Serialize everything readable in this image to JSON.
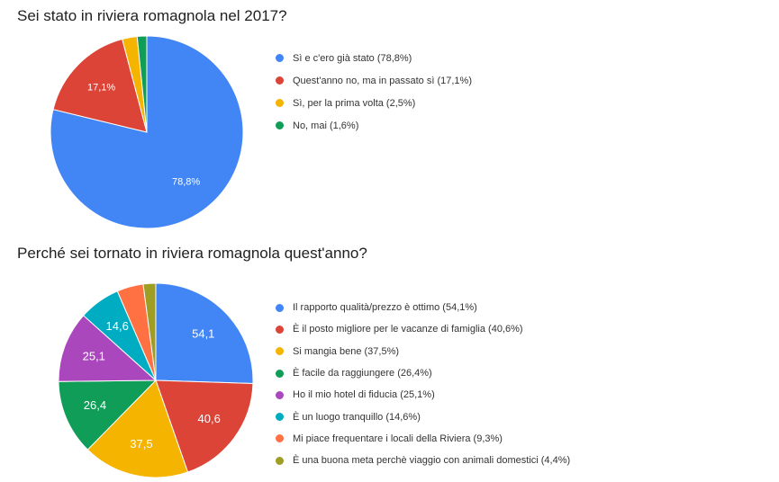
{
  "chart_data": [
    {
      "type": "pie",
      "title": "Sei stato in riviera romagnola nel 2017?",
      "legend_position": "right",
      "slices": [
        {
          "label": "Sì e c'ero già stato (78,8%)",
          "value": 78.8,
          "data_label": "78,8%",
          "color": "#4285F4"
        },
        {
          "label": "Quest'anno no, ma in passato sì (17,1%)",
          "value": 17.1,
          "data_label": "17,1%",
          "color": "#DB4437"
        },
        {
          "label": "Sì, per la prima volta (2,5%)",
          "value": 2.5,
          "data_label": "",
          "color": "#F4B400"
        },
        {
          "label": "No, mai (1,6%)",
          "value": 1.6,
          "data_label": "",
          "color": "#0F9D58"
        }
      ]
    },
    {
      "type": "pie",
      "title": "Perché sei tornato in riviera romagnola quest'anno?",
      "legend_position": "right",
      "slices": [
        {
          "label": "Il rapporto qualità/prezzo è ottimo (54,1%)",
          "value": 54.1,
          "data_label": "54,1",
          "color": "#4285F4"
        },
        {
          "label": "È il posto migliore per le vacanze di famiglia (40,6%)",
          "value": 40.6,
          "data_label": "40,6",
          "color": "#DB4437"
        },
        {
          "label": "Si mangia bene (37,5%)",
          "value": 37.5,
          "data_label": "37,5",
          "color": "#F4B400"
        },
        {
          "label": "È facile da raggiungere (26,4%)",
          "value": 26.4,
          "data_label": "26,4",
          "color": "#0F9D58"
        },
        {
          "label": "Ho il mio hotel di fiducia (25,1%)",
          "value": 25.1,
          "data_label": "25,1",
          "color": "#AB47BC"
        },
        {
          "label": "È un luogo tranquillo (14,6%)",
          "value": 14.6,
          "data_label": "14,6",
          "color": "#00ACC1"
        },
        {
          "label": "Mi piace frequentare i locali della Riviera (9,3%)",
          "value": 9.3,
          "data_label": "",
          "color": "#FF7043"
        },
        {
          "label": "È una buona meta perchè viaggio con animali domestici (4,4%)",
          "value": 4.4,
          "data_label": "",
          "color": "#9E9D24"
        }
      ]
    }
  ]
}
